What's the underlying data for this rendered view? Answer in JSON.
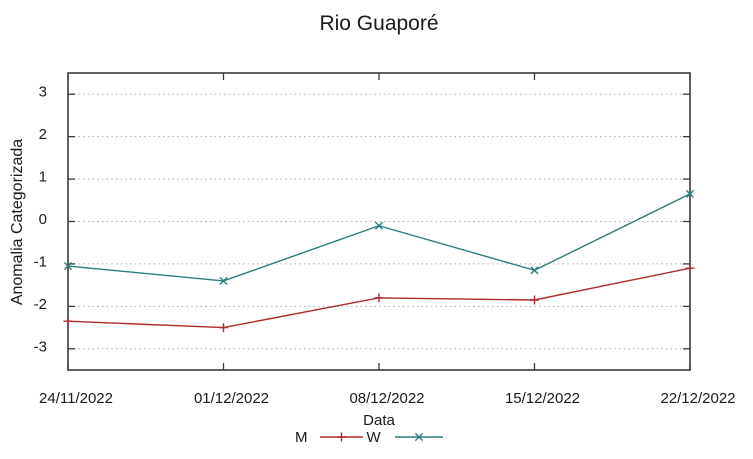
{
  "chart_data": {
    "type": "line",
    "title": "Rio Guaporé",
    "xlabel": "Data",
    "ylabel": "Anomalia Categorizada",
    "categories": [
      "24/11/2022",
      "01/12/2022",
      "08/12/2022",
      "15/12/2022",
      "22/12/2022"
    ],
    "yticks": [
      3,
      2,
      1,
      0,
      -1,
      -2,
      -3
    ],
    "ylim": [
      -3.5,
      3.5
    ],
    "grid": true,
    "legend_position": "bottom-center",
    "series": [
      {
        "name": "M",
        "color": "#ad2c2c",
        "marker": "plus",
        "values": [
          -2.35,
          -2.5,
          -1.8,
          -1.85,
          -1.1
        ]
      },
      {
        "name": "W",
        "color": "#2d7d7d",
        "marker": "cross",
        "values": [
          -1.05,
          -1.4,
          -0.1,
          -1.15,
          0.65
        ]
      }
    ],
    "colors": {
      "border": "#3a3a3a",
      "grid": "#a9a9a9",
      "text": "#1a1a1a"
    }
  }
}
